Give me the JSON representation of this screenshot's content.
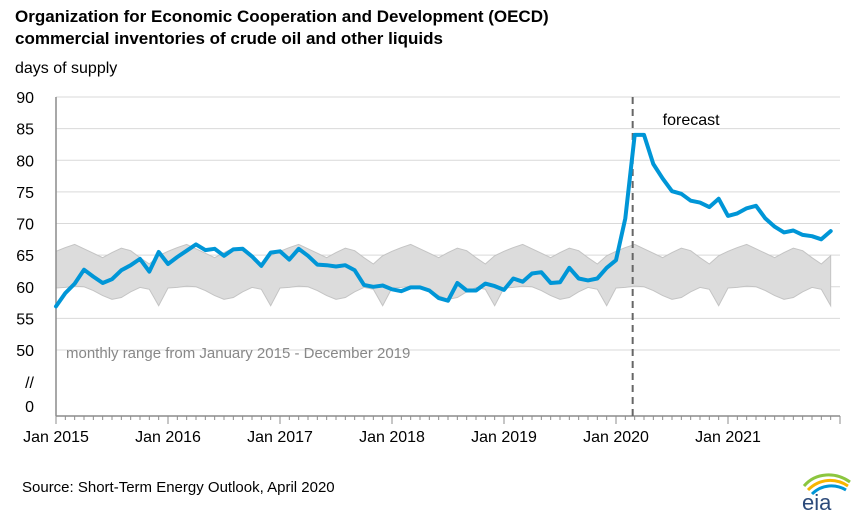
{
  "title_line1": "Organization for Economic Cooperation and Development (OECD)",
  "title_line2": "commercial inventories of crude oil and other liquids",
  "units": "days of supply",
  "source": "Source: Short-Term Energy Outlook, April 2020",
  "logo_text": "eia",
  "colors": {
    "series": "#0096d7",
    "range_fill": "#dcdcdc",
    "range_stroke": "#c4c4c4",
    "axis": "#8c8c8c",
    "forecast_line": "#666666"
  },
  "chart_data": {
    "type": "line",
    "title": "Organization for Economic Cooperation and Development (OECD) commercial inventories of crude oil and other liquids",
    "ylabel": "days of supply",
    "ylim": [
      0,
      90
    ],
    "axis_break": "//",
    "yticks": [
      "0",
      "//",
      "50",
      "55",
      "60",
      "65",
      "70",
      "75",
      "80",
      "85",
      "90"
    ],
    "xticks": [
      "Jan 2015",
      "Jan 2016",
      "Jan 2017",
      "Jan 2018",
      "Jan 2019",
      "Jan 2020",
      "Jan 2021"
    ],
    "x_start": "2015-01",
    "x_end": "2021-12",
    "forecast_start": "2020-03",
    "forecast_label": "forecast",
    "range_label": "monthly range from January 2015 - December 2019",
    "range_min": [
      59.8,
      59.9,
      60.1,
      60.0,
      59.4,
      58.6,
      58.0,
      58.3,
      59.2,
      59.9,
      59.6,
      57.0
    ],
    "range_max": [
      65.6,
      66.2,
      66.7,
      66.0,
      65.3,
      64.6,
      65.4,
      66.1,
      65.7,
      64.6,
      63.6,
      64.9
    ],
    "series": [
      {
        "name": "OECD commercial inventories",
        "values": [
          56.9,
          59.0,
          60.5,
          62.7,
          61.6,
          60.6,
          61.2,
          62.6,
          63.4,
          64.4,
          62.4,
          65.5,
          63.6,
          64.7,
          65.7,
          66.7,
          65.8,
          66.0,
          64.9,
          65.9,
          66.0,
          64.8,
          63.3,
          65.4,
          65.6,
          64.3,
          66.0,
          64.9,
          63.5,
          63.4,
          63.2,
          63.4,
          62.6,
          60.3,
          60.0,
          60.2,
          59.6,
          59.3,
          59.9,
          59.9,
          59.4,
          58.2,
          57.8,
          60.6,
          59.4,
          59.4,
          60.5,
          60.1,
          59.5,
          61.3,
          60.8,
          62.1,
          62.3,
          60.6,
          60.7,
          63.0,
          61.3,
          61.0,
          61.3,
          63.0,
          64.2,
          70.8,
          84.0,
          84.0,
          79.4,
          77.1,
          75.1,
          74.7,
          73.6,
          73.3,
          72.6,
          73.9,
          71.2,
          71.6,
          72.4,
          72.8,
          70.8,
          69.5,
          68.6,
          68.9,
          68.2,
          68.0,
          67.5,
          68.8
        ]
      }
    ],
    "grid": true,
    "legend": "none"
  }
}
